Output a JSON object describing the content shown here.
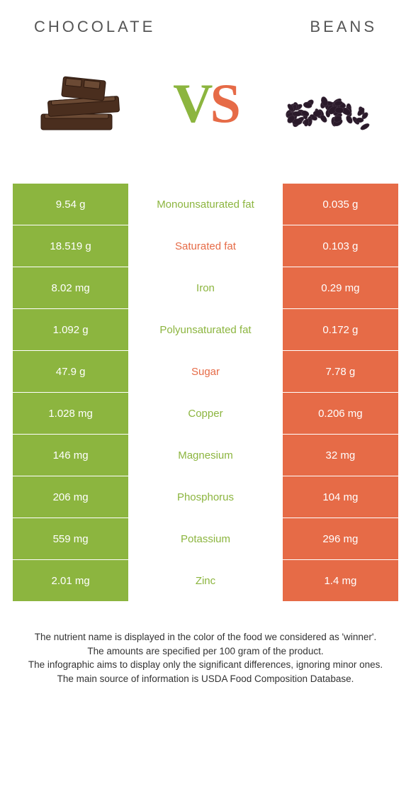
{
  "header": {
    "left_title": "CHOCOLATE",
    "right_title": "BEANS"
  },
  "vs": {
    "v": "V",
    "s": "S"
  },
  "colors": {
    "left_bg": "#8cb53f",
    "right_bg": "#e66b47",
    "left_text_on_white": "#8cb53f",
    "right_text_on_white": "#e66b47",
    "vs_v": "#8cb53f",
    "vs_s": "#e66b47"
  },
  "table": {
    "rows": [
      {
        "left": "9.54 g",
        "label": "Monounsaturated fat",
        "right": "0.035 g",
        "winner": "left"
      },
      {
        "left": "18.519 g",
        "label": "Saturated fat",
        "right": "0.103 g",
        "winner": "right"
      },
      {
        "left": "8.02 mg",
        "label": "Iron",
        "right": "0.29 mg",
        "winner": "left"
      },
      {
        "left": "1.092 g",
        "label": "Polyunsaturated fat",
        "right": "0.172 g",
        "winner": "left"
      },
      {
        "left": "47.9 g",
        "label": "Sugar",
        "right": "7.78 g",
        "winner": "right"
      },
      {
        "left": "1.028 mg",
        "label": "Copper",
        "right": "0.206 mg",
        "winner": "left"
      },
      {
        "left": "146 mg",
        "label": "Magnesium",
        "right": "32 mg",
        "winner": "left"
      },
      {
        "left": "206 mg",
        "label": "Phosphorus",
        "right": "104 mg",
        "winner": "left"
      },
      {
        "left": "559 mg",
        "label": "Potassium",
        "right": "296 mg",
        "winner": "left"
      },
      {
        "left": "2.01 mg",
        "label": "Zinc",
        "right": "1.4 mg",
        "winner": "left"
      }
    ]
  },
  "footer": {
    "line1": "The nutrient name is displayed in the color of the food we considered as 'winner'.",
    "line2": "The amounts are specified per 100 gram of the product.",
    "line3": "The infographic aims to display only the significant differences, ignoring minor ones.",
    "line4": "The main source of information is USDA Food Composition Database."
  }
}
